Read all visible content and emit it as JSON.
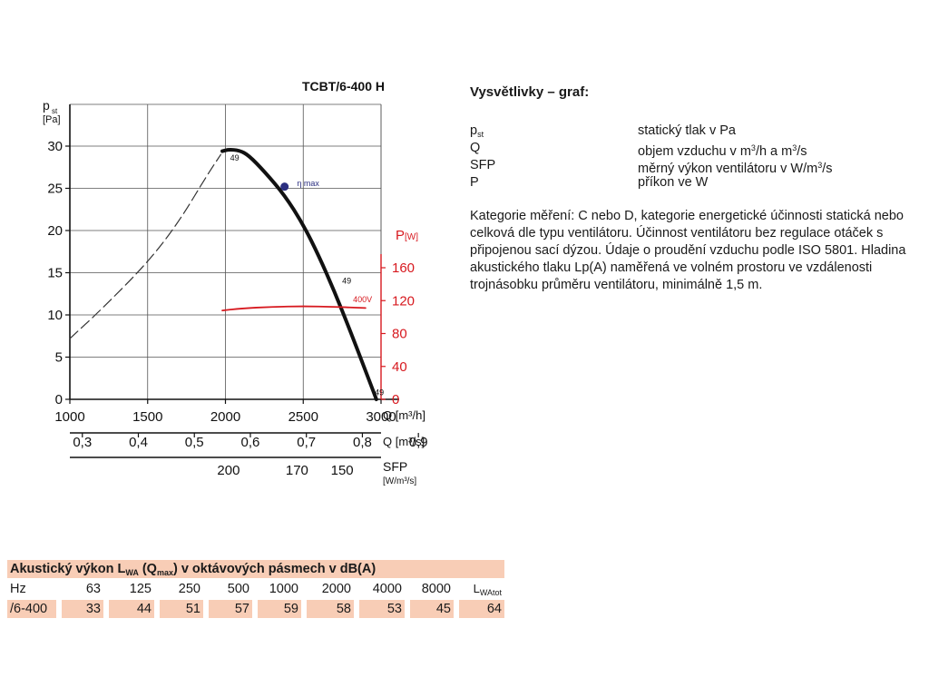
{
  "chart_data": {
    "type": "line",
    "title": "TCBT/6-400 H",
    "y_axis": {
      "label": "p",
      "label_sub": "st",
      "unit": "[Pa]",
      "range": [
        0,
        30
      ],
      "ticks": [
        0,
        5,
        10,
        15,
        20,
        25,
        30
      ]
    },
    "x_axis": {
      "label": "Q [m³/h]",
      "range": [
        1000,
        3000
      ],
      "ticks": [
        1000,
        1500,
        2000,
        2500,
        3000
      ]
    },
    "x_axis_2": {
      "label": "Q [m³/s]",
      "ticks": [
        {
          "value": 0.3,
          "label": "0,3"
        },
        {
          "value": 0.4,
          "label": "0,4"
        },
        {
          "value": 0.5,
          "label": "0,5"
        },
        {
          "value": 0.6,
          "label": "0,6"
        },
        {
          "value": 0.7,
          "label": "0,7"
        },
        {
          "value": 0.8,
          "label": "0,8"
        },
        {
          "value": 0.9,
          "label": "0,9"
        }
      ]
    },
    "x_axis_3": {
      "label": "SFP",
      "unit": "[W/m³/s]",
      "ticks": [
        {
          "at_q": 2020,
          "label": "200"
        },
        {
          "at_q": 2460,
          "label": "170"
        },
        {
          "at_q": 2750,
          "label": "150"
        }
      ]
    },
    "y_axis_right": {
      "label": "P",
      "unit": "[W]",
      "range": [
        0,
        180
      ],
      "ticks": [
        0,
        40,
        80,
        120,
        160
      ],
      "color": "#d7191f"
    },
    "series": [
      {
        "id": "pressure-stall",
        "style": "dashed",
        "color": "#333333",
        "points": [
          [
            1000,
            7.2
          ],
          [
            1200,
            10.6
          ],
          [
            1500,
            16.2
          ],
          [
            1700,
            21.0
          ],
          [
            1880,
            26.5
          ],
          [
            1970,
            29.0
          ]
        ]
      },
      {
        "id": "pressure",
        "style": "solid",
        "label": "49",
        "color": "#111111",
        "points": [
          [
            1980,
            29.4
          ],
          [
            2020,
            29.6
          ],
          [
            2090,
            29.5
          ],
          [
            2150,
            28.9
          ],
          [
            2250,
            27.0
          ],
          [
            2380,
            24.2
          ],
          [
            2500,
            20.7
          ],
          [
            2600,
            17.0
          ],
          [
            2700,
            12.8
          ],
          [
            2800,
            8.2
          ],
          [
            2900,
            3.4
          ],
          [
            2970,
            0
          ]
        ]
      },
      {
        "id": "power",
        "style": "solid",
        "label": "400V",
        "axis": "right",
        "color": "#d7191f",
        "points": [
          [
            1980,
            108
          ],
          [
            2100,
            110.5
          ],
          [
            2300,
            112.5
          ],
          [
            2500,
            113.2
          ],
          [
            2700,
            112.5
          ],
          [
            2900,
            111
          ]
        ]
      }
    ],
    "annotations": [
      {
        "text": "49",
        "q": 2030,
        "p": 28.3
      },
      {
        "text": "49",
        "q": 2750,
        "p": 13.7
      },
      {
        "text": "49",
        "q": 2960,
        "p": 0.5
      },
      {
        "text": "η max",
        "q": 2460,
        "p": 25.5,
        "marker": {
          "q": 2380,
          "p": 25.2
        },
        "color": "#2b2f80"
      }
    ],
    "grid": true
  },
  "legend": {
    "heading": "Vysvětlivky – graf:",
    "rows": [
      {
        "symbol": "p",
        "symbol_sub": "st",
        "description": "statický tlak v Pa"
      },
      {
        "symbol": "Q",
        "description_parts": [
          "objem vzduchu v m",
          "3",
          "/h a m",
          "3",
          "/s"
        ]
      },
      {
        "symbol": "SFP",
        "description_parts": [
          "měrný výkon ventilátoru v W/m",
          "3",
          "/s"
        ]
      },
      {
        "symbol": "P",
        "description": "příkon ve W"
      }
    ],
    "paragraph": "Kategorie měření: C nebo D, kategorie energetické účinnosti statická nebo celková dle typu ventilátoru. Účinnost ventilátoru bez regulace otáček s připojenou sací dýzou. Údaje o proudění vzduchu podle ISO 5801. Hladina akustického tlaku Lp(A) naměřená ve volném prostoru ve vzdálenosti trojnásobku průměru ventilátoru, minimálně 1,5 m."
  },
  "acoustic_table": {
    "title_parts": [
      "Akustický výkon L",
      "WA",
      " (Q",
      "max",
      ") v oktávových pásmech v dB(A)"
    ],
    "header_label": "Hz",
    "bands": [
      "63",
      "125",
      "250",
      "500",
      "1000",
      "2000",
      "4000",
      "8000"
    ],
    "total_label": "L",
    "total_label_sub": "WAtot",
    "row": {
      "model": "/6-400",
      "values": [
        "33",
        "44",
        "51",
        "57",
        "59",
        "58",
        "53",
        "45"
      ],
      "total": "64"
    }
  }
}
